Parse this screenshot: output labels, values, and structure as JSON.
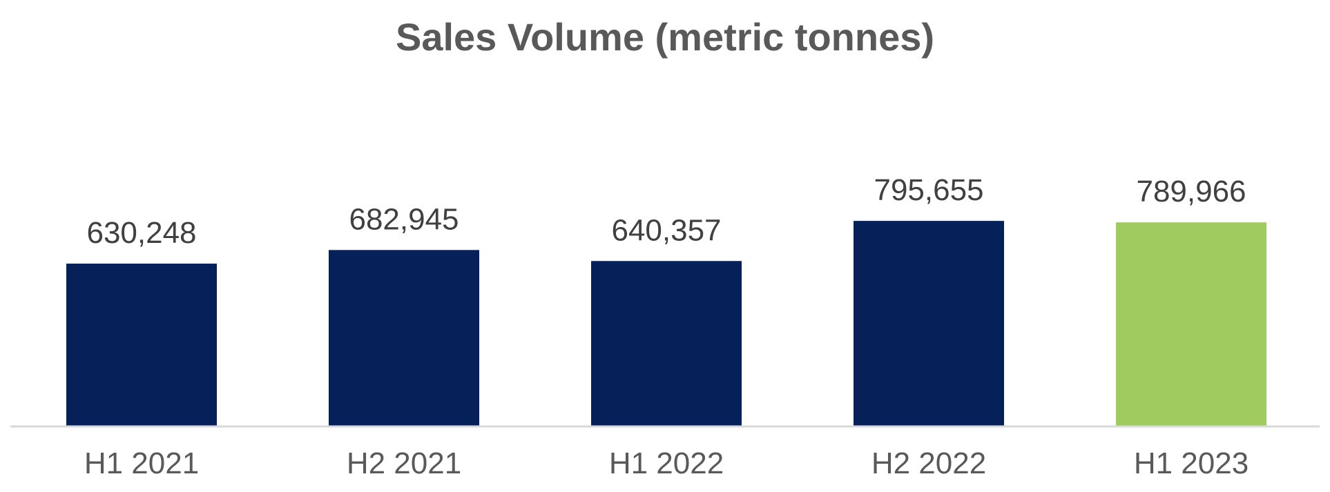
{
  "chart_data": {
    "type": "bar",
    "title": "Sales Volume (metric tonnes)",
    "xlabel": "",
    "ylabel": "",
    "categories": [
      "H1 2021",
      "H2 2021",
      "H1 2022",
      "H2 2022",
      "H1 2023"
    ],
    "values": [
      630248,
      682945,
      640357,
      795655,
      789966
    ],
    "data_labels": [
      "630,248",
      "682,945",
      "640,357",
      "795,655",
      "789,966"
    ],
    "ylim": [
      0,
      1050000
    ],
    "grid": false,
    "legend": "none",
    "y_axis_visible": false,
    "colors": {
      "bar": "#06205A",
      "highlight_bar": "#A0CB5E",
      "highlight_category": "H1 2023",
      "axis_line": "#D9D9D9",
      "title": "#595959",
      "labels": "#404040"
    }
  }
}
